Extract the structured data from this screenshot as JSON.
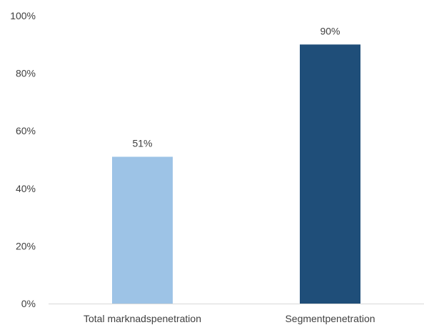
{
  "chart_data": {
    "type": "bar",
    "categories": [
      "Total marknadspenetration",
      "Segmentpenetration"
    ],
    "values": [
      51,
      90
    ],
    "value_labels": [
      "51%",
      "90%"
    ],
    "bar_colors": [
      "#9DC3E6",
      "#1F4E79"
    ],
    "yticks": [
      "0%",
      "20%",
      "40%",
      "60%",
      "80%",
      "100%"
    ],
    "ylim": [
      0,
      100
    ],
    "grid": false,
    "legend": "none"
  }
}
